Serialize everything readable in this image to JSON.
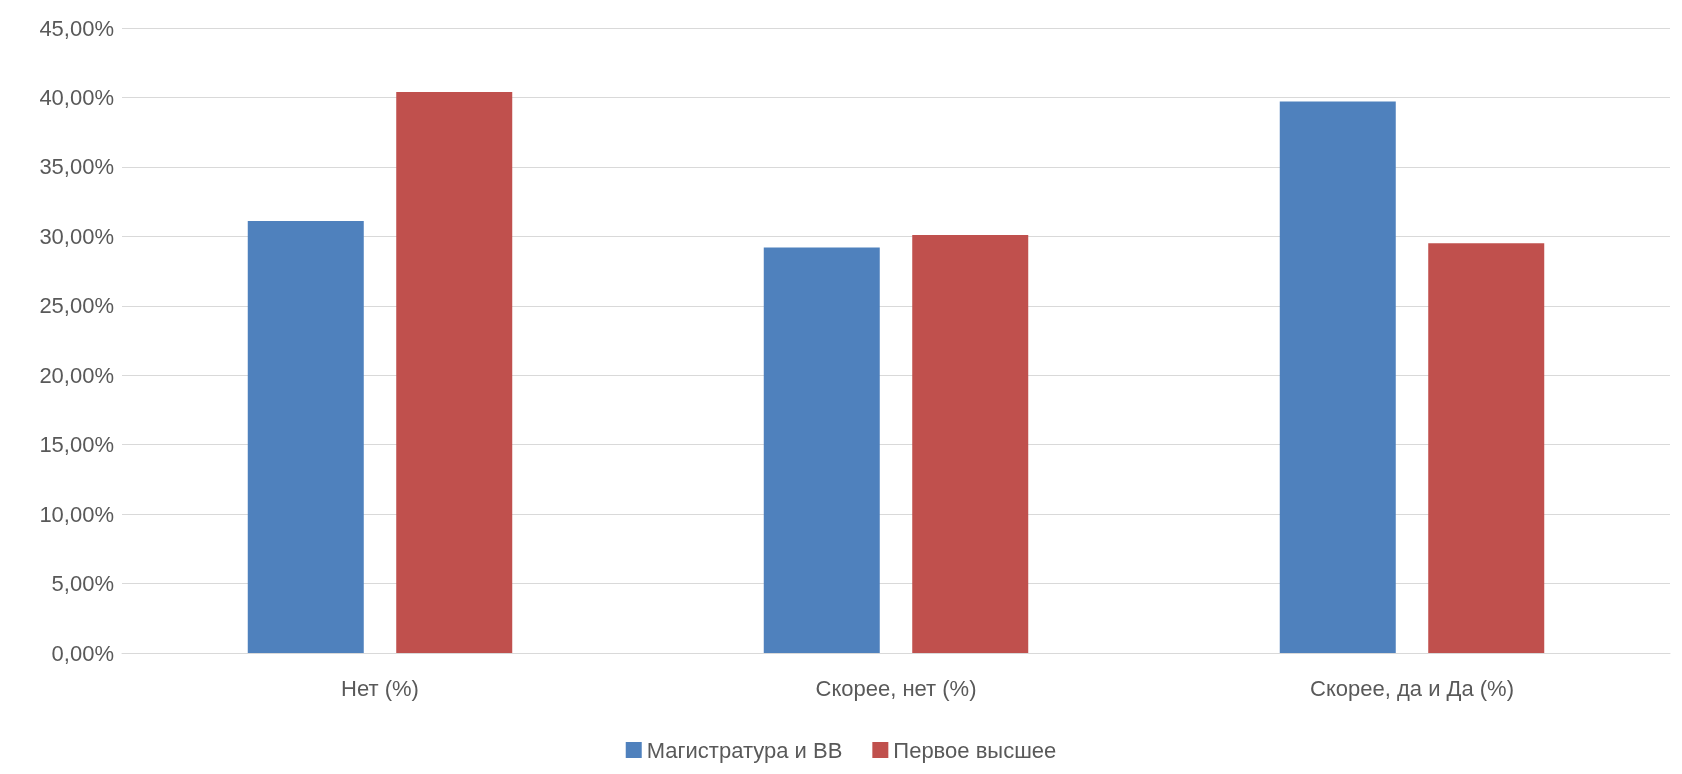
{
  "chart_data": {
    "type": "bar",
    "categories": [
      "Нет (%)",
      "Скорее, нет (%)",
      "Скорее, да и Да (%)"
    ],
    "series": [
      {
        "name": "Магистратура и ВВ",
        "color": "#4f81bd",
        "values": [
          31.1,
          29.2,
          39.7
        ]
      },
      {
        "name": "Первое высшее",
        "color": "#c0504d",
        "values": [
          40.4,
          30.1,
          29.5
        ]
      }
    ],
    "ylim": [
      0,
      45
    ],
    "yticks": [
      {
        "value": 0,
        "label": "0,00%"
      },
      {
        "value": 5,
        "label": "5,00%"
      },
      {
        "value": 10,
        "label": "10,00%"
      },
      {
        "value": 15,
        "label": "15,00%"
      },
      {
        "value": 20,
        "label": "20,00%"
      },
      {
        "value": 25,
        "label": "25,00%"
      },
      {
        "value": 30,
        "label": "30,00%"
      },
      {
        "value": 35,
        "label": "35,00%"
      },
      {
        "value": 40,
        "label": "40,00%"
      },
      {
        "value": 45,
        "label": "45,00%"
      }
    ],
    "grid": "y",
    "legend": "bottom"
  }
}
